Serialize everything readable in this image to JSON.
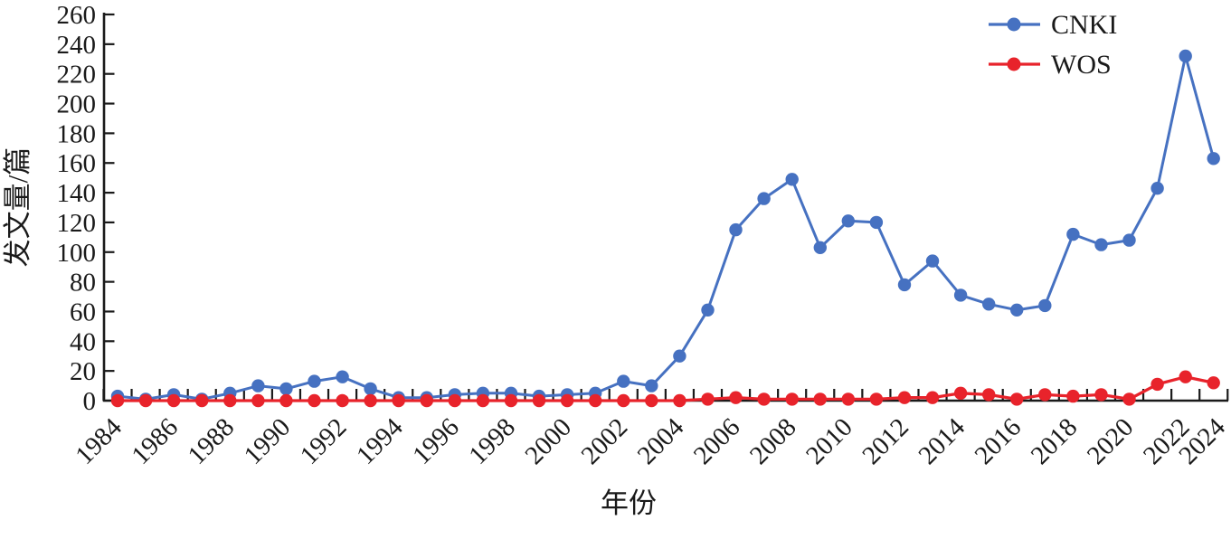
{
  "chart_data": {
    "type": "line",
    "title": "",
    "x_axis_label": "年份",
    "y_axis_label": "发文量/篇",
    "x": [
      1984,
      1985,
      1986,
      1987,
      1988,
      1989,
      1990,
      1991,
      1992,
      1993,
      1994,
      1995,
      1996,
      1997,
      1998,
      1999,
      2000,
      2001,
      2002,
      2003,
      2004,
      2005,
      2006,
      2007,
      2008,
      2009,
      2010,
      2011,
      2012,
      2013,
      2014,
      2015,
      2016,
      2017,
      2018,
      2019,
      2020,
      2021,
      2022,
      2023
    ],
    "x_tick_labels": [
      "1984",
      "1986",
      "1988",
      "1990",
      "1992",
      "1994",
      "1996",
      "1998",
      "2000",
      "2002",
      "2004",
      "2006",
      "2008",
      "2010",
      "2012",
      "2014",
      "2016",
      "2018",
      "2020",
      "2022",
      "2024"
    ],
    "y_ticks": [
      0,
      20,
      40,
      60,
      80,
      100,
      120,
      140,
      160,
      180,
      200,
      220,
      240,
      260
    ],
    "ylim": [
      0,
      260
    ],
    "grid": false,
    "legend_position": "top-right",
    "series": [
      {
        "name": "CNKI",
        "color": "#4671C1",
        "marker": "circle",
        "values": [
          3,
          1,
          4,
          1,
          5,
          10,
          8,
          13,
          16,
          8,
          2,
          2,
          4,
          5,
          5,
          3,
          4,
          5,
          13,
          10,
          30,
          61,
          115,
          136,
          149,
          103,
          121,
          120,
          78,
          94,
          71,
          65,
          61,
          64,
          112,
          105,
          108,
          143,
          232,
          163
        ]
      },
      {
        "name": "WOS",
        "color": "#E8232B",
        "marker": "circle",
        "values": [
          0,
          0,
          0,
          0,
          0,
          0,
          0,
          0,
          0,
          0,
          0,
          0,
          0,
          0,
          0,
          0,
          0,
          0,
          0,
          0,
          0,
          1,
          2,
          1,
          1,
          1,
          1,
          1,
          2,
          2,
          5,
          4,
          1,
          4,
          3,
          4,
          1,
          11,
          16,
          12
        ]
      }
    ],
    "axis_color": "#1a1a1a"
  }
}
